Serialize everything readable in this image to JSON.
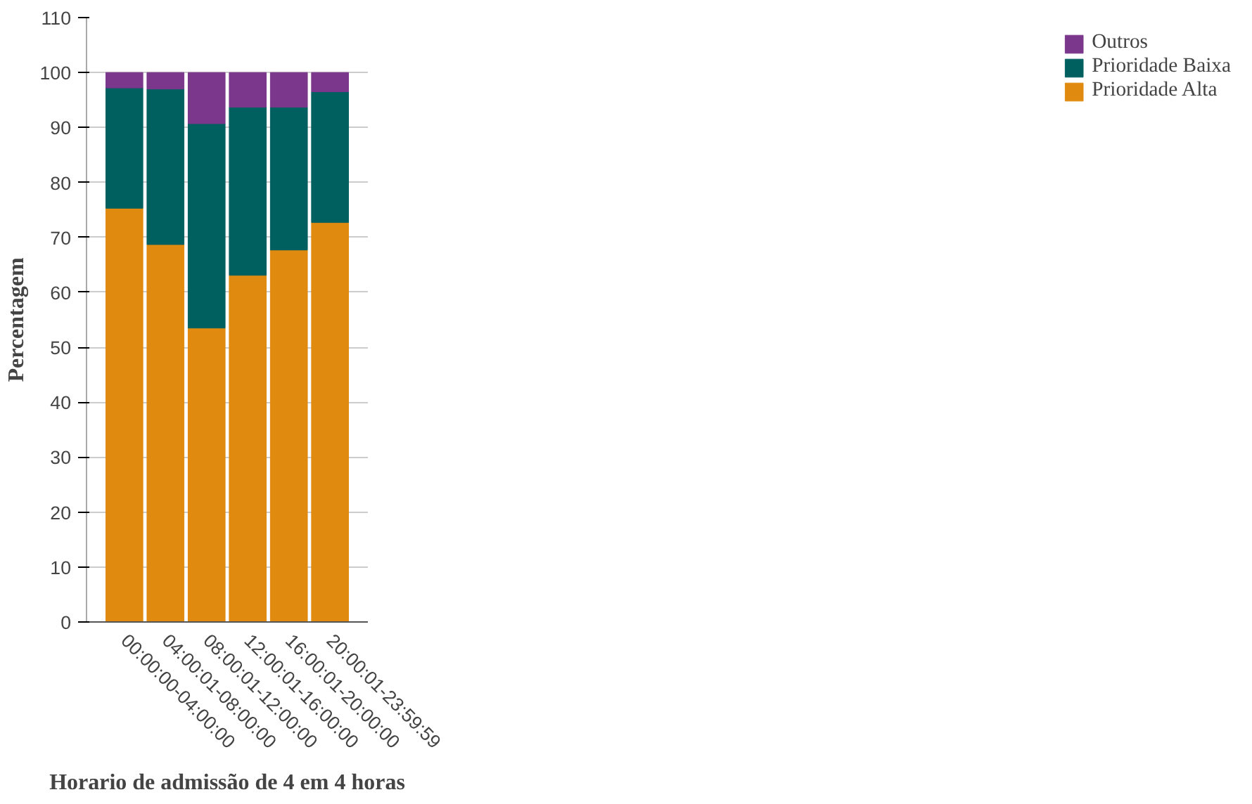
{
  "chart_data": {
    "type": "bar",
    "stacked": true,
    "xlabel": "Horario de admissão de 4 em 4 horas",
    "ylabel": "Percentagem",
    "categories": [
      "00:00:00-04:00:00",
      "04:00:01-08:00:00",
      "08:00:01-12:00:00",
      "12:00:01-16:00:00",
      "16:00:01-20:00:00",
      "20:00:01-23:59:59"
    ],
    "series": [
      {
        "name": "Prioridade Alta",
        "color": "#e08a10",
        "values": [
          75.3,
          68.7,
          53.5,
          63.1,
          67.7,
          72.7
        ]
      },
      {
        "name": "Prioridade Baixa",
        "color": "#005f5f",
        "values": [
          21.9,
          28.3,
          37.2,
          30.6,
          26.0,
          23.8
        ]
      },
      {
        "name": "Outros",
        "color": "#7a378b",
        "values": [
          2.8,
          3.0,
          9.3,
          6.3,
          6.3,
          3.5
        ]
      }
    ],
    "ylim": [
      0,
      110
    ],
    "yticks": [
      0,
      10,
      20,
      30,
      40,
      50,
      60,
      70,
      80,
      90,
      100,
      110
    ],
    "grid": "y",
    "legend": "right"
  }
}
